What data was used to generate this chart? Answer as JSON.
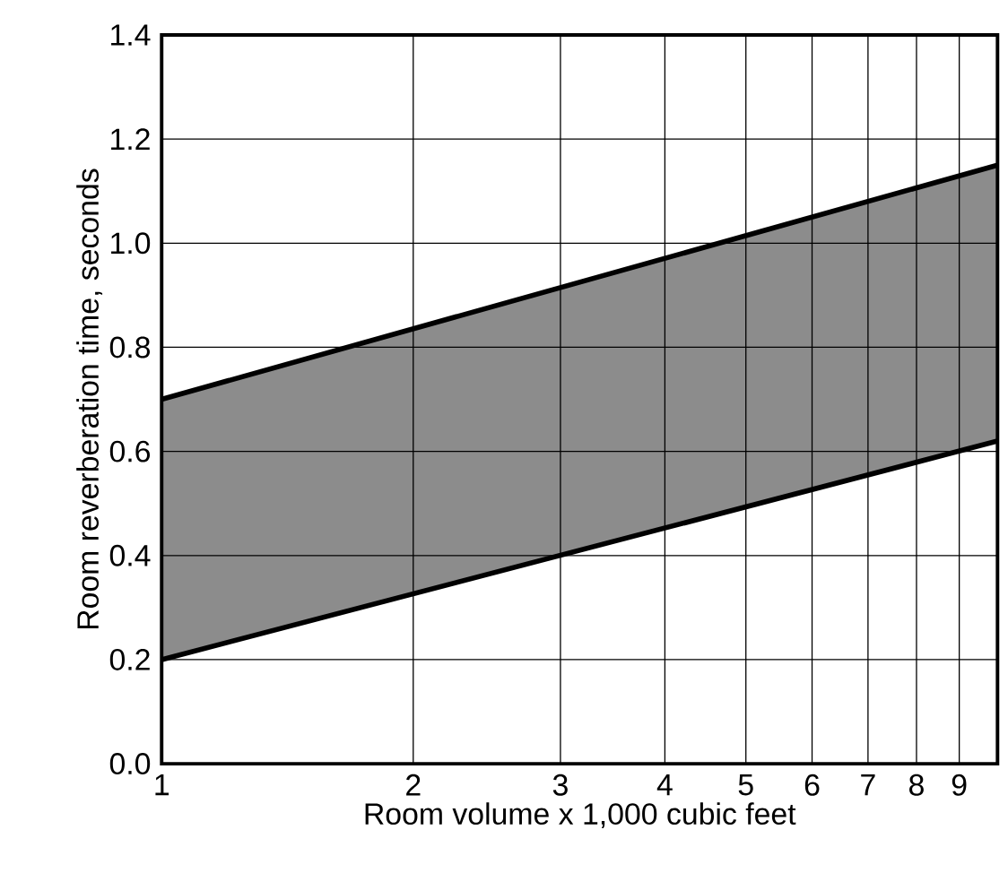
{
  "chart_data": {
    "type": "line",
    "xlabel": "Room volume x 1,000 cubic feet",
    "ylabel": "Room reverberation time, seconds",
    "x": [
      1,
      10
    ],
    "series": [
      {
        "values": [
          0.7,
          1.15
        ],
        "lower": [
          0.2,
          0.62
        ],
        "upper": [
          0.7,
          1.15
        ],
        "color": "#000000"
      },
      {
        "values": [
          0.2,
          0.62
        ],
        "color": "#000000"
      }
    ],
    "log": "x",
    "xlim": [
      1,
      10
    ],
    "ylim": [
      0,
      1.4
    ],
    "xticks": [
      1,
      2,
      3,
      4,
      5,
      6,
      7,
      8,
      9,
      {
        "value": 10,
        "label": null
      }
    ],
    "yticks": [
      {
        "value": 0,
        "label": "0.0"
      },
      0.2,
      0.4,
      0.6,
      0.8,
      {
        "value": 1,
        "label": "1.0"
      },
      1.2,
      1.4
    ],
    "grid": true
  }
}
